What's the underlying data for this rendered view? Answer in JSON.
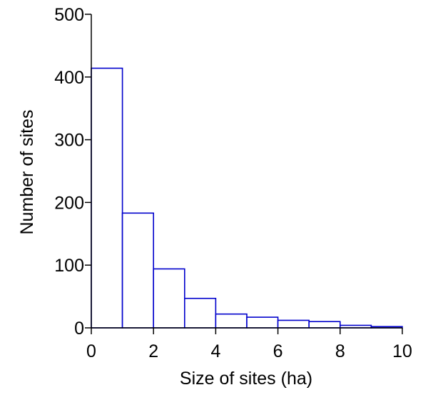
{
  "chart_data": {
    "type": "bar",
    "title": "",
    "xlabel": "Size of sites (ha)",
    "ylabel": "Number of sites",
    "xlim": [
      0,
      10
    ],
    "ylim": [
      0,
      500
    ],
    "xticks": [
      0,
      2,
      4,
      6,
      8,
      10
    ],
    "yticks": [
      0,
      100,
      200,
      300,
      400,
      500
    ],
    "grid": false,
    "bar_color": "#0000cc",
    "bins": [
      {
        "x0": 0,
        "x1": 1,
        "value": 414
      },
      {
        "x0": 1,
        "x1": 2,
        "value": 183
      },
      {
        "x0": 2,
        "x1": 3,
        "value": 94
      },
      {
        "x0": 3,
        "x1": 4,
        "value": 47
      },
      {
        "x0": 4,
        "x1": 5,
        "value": 22
      },
      {
        "x0": 5,
        "x1": 6,
        "value": 17
      },
      {
        "x0": 6,
        "x1": 7,
        "value": 12
      },
      {
        "x0": 7,
        "x1": 8,
        "value": 10
      },
      {
        "x0": 8,
        "x1": 9,
        "value": 4
      },
      {
        "x0": 9,
        "x1": 10,
        "value": 2
      }
    ]
  }
}
